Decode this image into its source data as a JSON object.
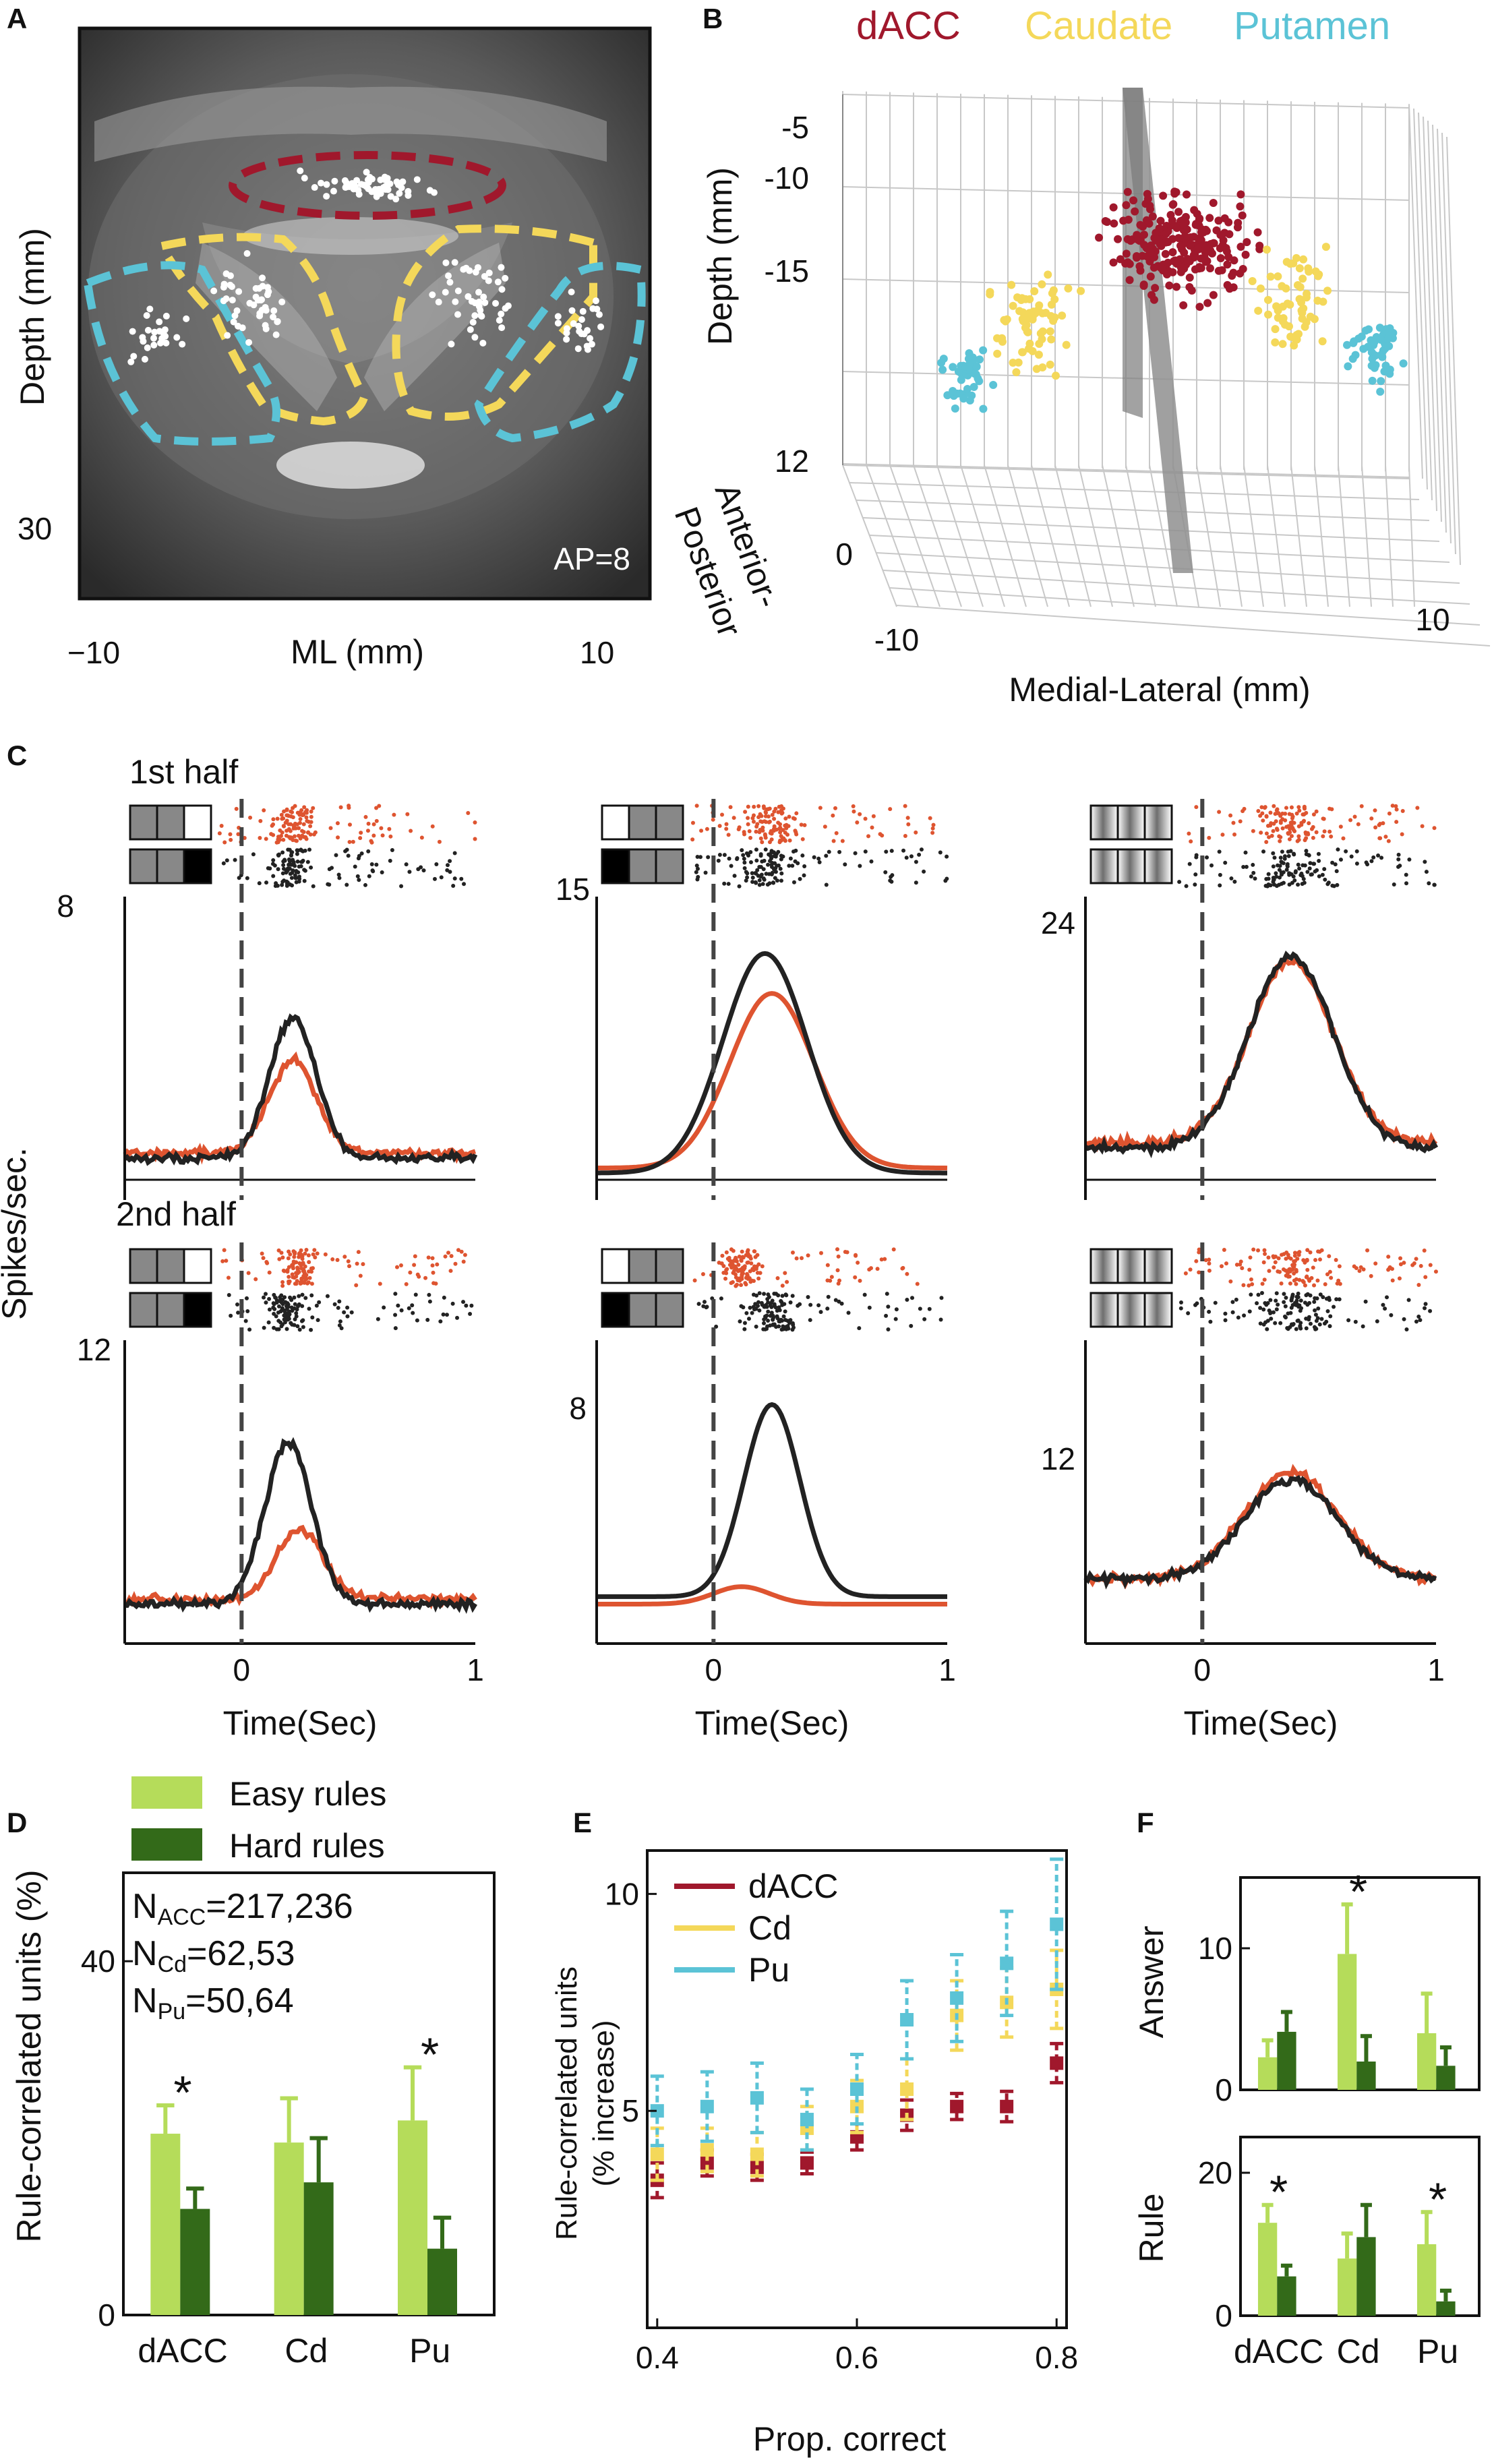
{
  "panels": {
    "A": {
      "letter": "A",
      "ylabel": "Depth (mm)",
      "xlabel": "ML (mm)",
      "y_tick": "30",
      "x_ticks": [
        "−10",
        "10"
      ],
      "annotation": "AP=8"
    },
    "B": {
      "letter": "B",
      "legend": [
        {
          "name": "dACC",
          "color": "#a0182c"
        },
        {
          "name": "Caudate",
          "color": "#f4d85a"
        },
        {
          "name": "Putamen",
          "color": "#5bc3d6"
        }
      ],
      "z_label": "Depth (mm)",
      "z_ticks": [
        "-5",
        "-10",
        "-15"
      ],
      "ap_label_1": "Anterior-",
      "ap_label_2": "Posterior",
      "ap_ticks": [
        "12",
        "0"
      ],
      "x_label": "Medial-Lateral (mm)",
      "x_ticks": [
        "-10",
        "10"
      ]
    },
    "C": {
      "letter": "C",
      "row_labels": [
        "1st half",
        "2nd half"
      ],
      "ylabel": "Spikes/sec.",
      "xlabel": "Time(Sec)",
      "x_ticks": [
        "0",
        "1"
      ],
      "peak_ticks": [
        "8",
        "15",
        "24",
        "12",
        "8",
        "12"
      ],
      "colors": {
        "orange": "#de5430",
        "black": "#222222"
      }
    },
    "D": {
      "letter": "D",
      "legend": [
        "Easy rules",
        "Hard rules"
      ],
      "ns": [
        {
          "sub": "ACC",
          "val": "=217,236"
        },
        {
          "sub": "Cd",
          "val": "=62,53"
        },
        {
          "sub": "Pu",
          "val": "=50,64"
        }
      ],
      "ylabel": "Rule-correlated units (%)",
      "colors": {
        "easy": "#b5dc5a",
        "hard": "#336a19"
      }
    },
    "E": {
      "letter": "E",
      "legend": [
        "dACC",
        "Cd",
        "Pu"
      ],
      "ylabel_1": "Rule-correlated units",
      "ylabel_2": "(% increase)",
      "xlabel": "Prop. correct",
      "colors": {
        "dACC": "#a0182c",
        "Cd": "#f4d85a",
        "Pu": "#5bc3d6"
      }
    },
    "F": {
      "letter": "F",
      "top_ylabel": "Answer",
      "bottom_ylabel": "Rule"
    }
  },
  "chart_data": [
    {
      "type": "bar",
      "panel": "D",
      "categories": [
        "dACC",
        "Cd",
        "Pu"
      ],
      "series": [
        {
          "name": "Easy rules",
          "values": [
            20.5,
            19.5,
            22
          ],
          "errors": [
            3.2,
            5,
            6
          ]
        },
        {
          "name": "Hard rules",
          "values": [
            12,
            15,
            7.5
          ],
          "errors": [
            2.3,
            5,
            3.5
          ]
        }
      ],
      "significance": [
        "*",
        "",
        "*"
      ],
      "yticks": [
        0,
        40
      ],
      "ylim": [
        0,
        50
      ]
    },
    {
      "type": "scatter",
      "panel": "E",
      "x": [
        0.4,
        0.45,
        0.5,
        0.55,
        0.6,
        0.65,
        0.7,
        0.75,
        0.8
      ],
      "series": [
        {
          "name": "dACC",
          "values": [
            3.4,
            3.8,
            3.7,
            3.8,
            4.4,
            4.9,
            5.1,
            5.1,
            6.1
          ],
          "errors": [
            0.4,
            0.3,
            0.3,
            0.25,
            0.3,
            0.35,
            0.3,
            0.35,
            0.45
          ]
        },
        {
          "name": "Cd",
          "values": [
            4.0,
            4.1,
            4.0,
            4.6,
            5.1,
            5.5,
            7.2,
            7.5,
            7.8
          ],
          "errors": [
            0.6,
            0.5,
            0.5,
            0.5,
            0.6,
            0.7,
            0.8,
            0.8,
            0.9
          ]
        },
        {
          "name": "Pu",
          "values": [
            5.0,
            5.1,
            5.3,
            4.8,
            5.5,
            7.1,
            7.6,
            8.4,
            9.3
          ],
          "errors": [
            0.8,
            0.8,
            0.8,
            0.7,
            0.8,
            0.9,
            1.0,
            1.2,
            1.5
          ]
        }
      ],
      "xticks": [
        0.4,
        0.6,
        0.8
      ],
      "yticks": [
        5,
        10
      ],
      "xlim": [
        0.39,
        0.81
      ],
      "ylim": [
        0,
        11
      ]
    },
    {
      "type": "bar",
      "panel": "F-top",
      "ylabel": "Answer",
      "categories": [
        "dACC",
        "Cd",
        "Pu"
      ],
      "series": [
        {
          "name": "Easy rules",
          "values": [
            2.3,
            9.6,
            4.0
          ],
          "errors": [
            1.2,
            3.5,
            2.8
          ]
        },
        {
          "name": "Hard rules",
          "values": [
            4.1,
            2.0,
            1.7
          ],
          "errors": [
            1.4,
            1.8,
            1.3
          ]
        }
      ],
      "significance": [
        "",
        "*",
        ""
      ],
      "yticks": [
        0,
        10
      ],
      "ylim": [
        0,
        15
      ]
    },
    {
      "type": "bar",
      "panel": "F-bottom",
      "ylabel": "Rule",
      "categories": [
        "dACC",
        "Cd",
        "Pu"
      ],
      "series": [
        {
          "name": "Easy rules",
          "values": [
            13,
            8,
            10
          ],
          "errors": [
            2.5,
            3.5,
            4.5
          ]
        },
        {
          "name": "Hard rules",
          "values": [
            5.5,
            11,
            2
          ],
          "errors": [
            1.5,
            4.5,
            1.5
          ]
        }
      ],
      "significance": [
        "*",
        "",
        "*"
      ],
      "yticks": [
        0,
        20
      ],
      "ylim": [
        0,
        25
      ]
    }
  ]
}
